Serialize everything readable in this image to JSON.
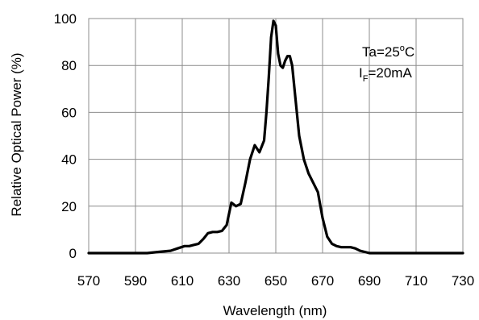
{
  "chart_data": {
    "type": "line",
    "xlabel": "Wavelength  (nm)",
    "ylabel": "Relative Optical Power  (%)",
    "xlim": [
      570,
      730
    ],
    "ylim": [
      0,
      100
    ],
    "x_ticks": [
      570,
      590,
      610,
      630,
      650,
      670,
      690,
      710,
      730
    ],
    "y_ticks": [
      0,
      20,
      40,
      60,
      80,
      100
    ],
    "x_tick_labels": [
      "570",
      "590",
      "610",
      "630",
      "650",
      "670",
      "690",
      "710",
      "730"
    ],
    "y_tick_labels": [
      "0",
      "20",
      "40",
      "60",
      "80",
      "100"
    ],
    "grid": true,
    "annotation": {
      "line1": "Ta=25",
      "line1_sup": "o",
      "line1_tail": "C",
      "line2_main": "I",
      "line2_sub": "F",
      "line2_tail": "=20mA"
    },
    "series": [
      {
        "color": "#000000",
        "x": [
          570,
          595,
          600,
          605,
          608,
          611,
          613,
          615,
          617,
          619,
          621,
          623,
          625,
          627,
          629,
          631,
          633,
          635,
          637,
          639,
          641,
          643,
          645,
          646,
          647,
          648,
          649,
          650,
          651,
          652,
          653,
          654,
          655,
          656,
          657,
          658,
          659,
          660,
          662,
          664,
          666,
          668,
          670,
          672,
          674,
          676,
          678,
          680,
          682,
          684,
          686,
          688,
          690,
          695,
          730
        ],
        "y": [
          0,
          0,
          0.5,
          1,
          2,
          3,
          3,
          3.5,
          4,
          6,
          8.5,
          9,
          9,
          9.5,
          12,
          21.5,
          20,
          21,
          30,
          40,
          46,
          43,
          48,
          60,
          75,
          92,
          99,
          97,
          85,
          80,
          79,
          82,
          84,
          84,
          80,
          70,
          60,
          50,
          40,
          34,
          30,
          26,
          15,
          7,
          4,
          3,
          2.5,
          2.5,
          2.5,
          2,
          1,
          0.5,
          0,
          0,
          0
        ]
      }
    ]
  }
}
